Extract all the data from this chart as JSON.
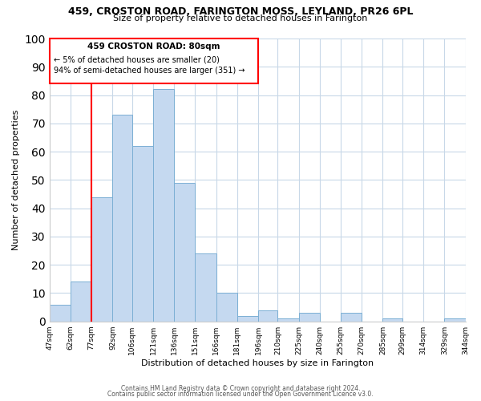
{
  "title": "459, CROSTON ROAD, FARINGTON MOSS, LEYLAND, PR26 6PL",
  "subtitle": "Size of property relative to detached houses in Farington",
  "xlabel": "Distribution of detached houses by size in Farington",
  "ylabel": "Number of detached properties",
  "bar_color": "#c5d9f0",
  "bar_edge_color": "#7bafd4",
  "bin_edges": [
    47,
    62,
    77,
    92,
    106,
    121,
    136,
    151,
    166,
    181,
    196,
    210,
    225,
    240,
    255,
    270,
    285,
    299,
    314,
    329,
    344
  ],
  "bar_heights": [
    6,
    14,
    44,
    73,
    62,
    82,
    49,
    24,
    10,
    2,
    4,
    1,
    3,
    0,
    3,
    0,
    1,
    0,
    0,
    1
  ],
  "tick_labels": [
    "47sqm",
    "62sqm",
    "77sqm",
    "92sqm",
    "106sqm",
    "121sqm",
    "136sqm",
    "151sqm",
    "166sqm",
    "181sqm",
    "196sqm",
    "210sqm",
    "225sqm",
    "240sqm",
    "255sqm",
    "270sqm",
    "285sqm",
    "299sqm",
    "314sqm",
    "329sqm",
    "344sqm"
  ],
  "ylim": [
    0,
    100
  ],
  "yticks": [
    0,
    10,
    20,
    30,
    40,
    50,
    60,
    70,
    80,
    90,
    100
  ],
  "vline_x": 77,
  "annotation_title": "459 CROSTON ROAD: 80sqm",
  "annotation_line1": "← 5% of detached houses are smaller (20)",
  "annotation_line2": "94% of semi-detached houses are larger (351) →",
  "footer1": "Contains HM Land Registry data © Crown copyright and database right 2024.",
  "footer2": "Contains public sector information licensed under the Open Government Licence v3.0.",
  "background_color": "#ffffff",
  "grid_color": "#c8d8e8"
}
